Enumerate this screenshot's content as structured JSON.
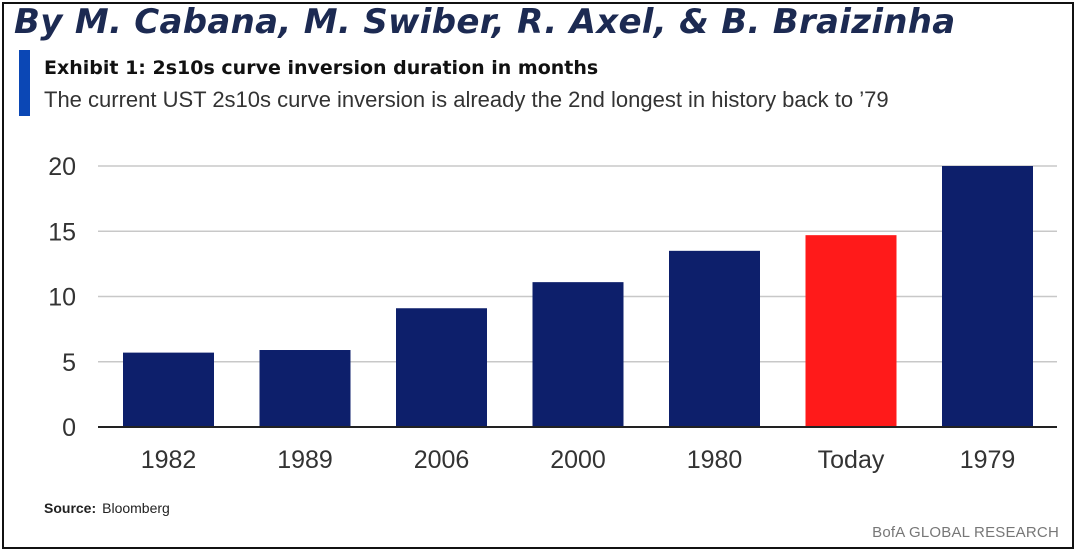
{
  "header": {
    "byline": "By M. Cabana, M. Swiber, R. Axel, & B. Braizinha",
    "exhibit_title": "Exhibit 1:  2s10s curve inversion duration in months",
    "subtitle": "The current UST 2s10s curve inversion is already the 2nd longest in history back to ’79"
  },
  "footer": {
    "source_label": "Source:",
    "source_value": "Bloomberg",
    "brand": "BofA GLOBAL RESEARCH"
  },
  "colors": {
    "bar": "#0d1f6b",
    "highlight": "#ff1a1a",
    "grid": "#c8c8c8",
    "axis": "#222222",
    "tick_text": "#333333"
  },
  "chart_data": {
    "type": "bar",
    "title": "2s10s curve inversion duration in months",
    "xlabel": "",
    "ylabel": "",
    "categories": [
      "1982",
      "1989",
      "2006",
      "2000",
      "1980",
      "Today",
      "1979"
    ],
    "values": [
      5.7,
      5.9,
      9.1,
      11.1,
      13.5,
      14.7,
      20
    ],
    "highlight": "Today",
    "ylim": [
      0,
      20
    ],
    "yticks": [
      0,
      5,
      10,
      15,
      20
    ],
    "grid": true
  }
}
